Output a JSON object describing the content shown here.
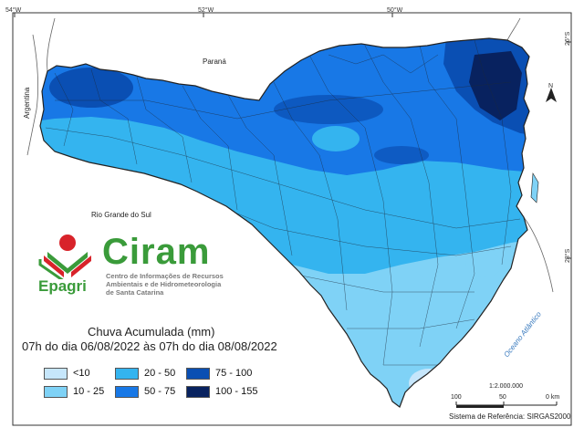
{
  "title": {
    "line1": "Chuva Acumulada (mm)",
    "line2": "07h do dia 06/08/2022 às 07h do dia 08/08/2022"
  },
  "graticule": {
    "top": [
      "54°W",
      "52°W",
      "50°W"
    ],
    "right": [
      "26°S",
      "28°S"
    ]
  },
  "places": {
    "parana": "Paraná",
    "rio_grande_do_sul": "Rio Grande do Sul",
    "argentina": "Argentina",
    "ocean": "Oceano Atlântico"
  },
  "north_arrow": "N",
  "logo": {
    "name": "Ciram",
    "org": "Epagri",
    "subtitle": [
      "Centro de Informações de Recursos",
      "Ambientais e de Hidrometeorologia",
      "de Santa Catarina"
    ]
  },
  "legend": [
    {
      "label": "<10",
      "color": "#c6e6fb"
    },
    {
      "label": "10 - 25",
      "color": "#7fd2f6"
    },
    {
      "label": "20 - 50",
      "color": "#34b4ef"
    },
    {
      "label": "50 - 75",
      "color": "#1878e6"
    },
    {
      "label": "75 - 100",
      "color": "#0a4fb3"
    },
    {
      "label": "100 - 155",
      "color": "#08225f"
    }
  ],
  "scale": {
    "ratio": "1:2.000.000",
    "ticks": [
      "100",
      "50",
      "0 km"
    ]
  },
  "reference": "Sistema de Referência: SIRGAS2000",
  "colors": {
    "neighbor": "#ffffff",
    "ocean": "#ffffff",
    "border": "#222222"
  }
}
